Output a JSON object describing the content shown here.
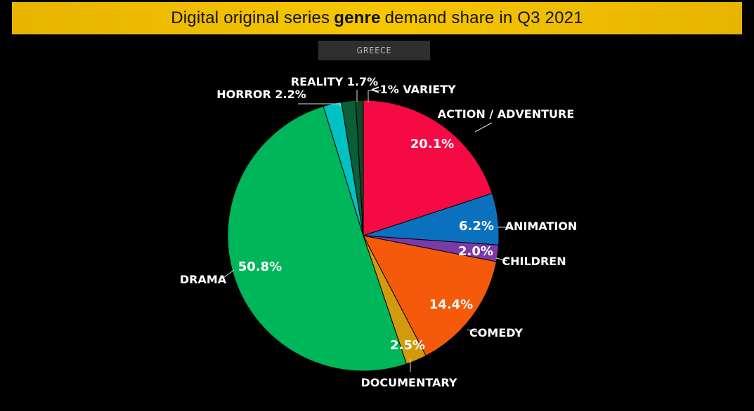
{
  "chart_data": {
    "type": "pie",
    "title_before": "Digital original series",
    "title_bold": "genre",
    "title_after": "demand share in Q3 2021",
    "region": "GREECE",
    "slices": [
      {
        "name": "ACTION / ADVENTURE",
        "value": 20.1,
        "label": "20.1%",
        "color": "#f50a44"
      },
      {
        "name": "ANIMATION",
        "value": 6.2,
        "label": "6.2%",
        "color": "#0b71bf"
      },
      {
        "name": "CHILDREN",
        "value": 2.0,
        "label": "2.0%",
        "color": "#7a3aa8"
      },
      {
        "name": "COMEDY",
        "value": 14.4,
        "label": "14.4%",
        "color": "#f55a0a"
      },
      {
        "name": "DOCUMENTARY",
        "value": 2.5,
        "label": "2.5%",
        "color": "#d49a0d"
      },
      {
        "name": "DRAMA",
        "value": 50.8,
        "label": "50.8%",
        "color": "#00b65a"
      },
      {
        "name": "HORROR",
        "value": 2.2,
        "label": "HORROR 2.2%",
        "color": "#00c2c2"
      },
      {
        "name": "REALITY",
        "value": 1.7,
        "label": "REALITY 1.7%",
        "color": "#0a5e38"
      },
      {
        "name": "VARIETY",
        "value": 0.9,
        "label": "<1% VARIETY",
        "color": "#0b4a2a"
      }
    ]
  }
}
